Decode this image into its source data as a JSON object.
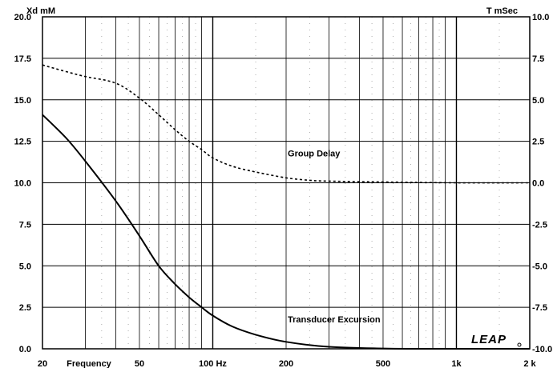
{
  "chart_data": {
    "type": "line",
    "title": "",
    "xlabel": "Frequency",
    "x_scale": "log",
    "xlim": [
      20,
      2000
    ],
    "x_ticks": [
      {
        "value": 20,
        "label": "20"
      },
      {
        "value": 50,
        "label": "50"
      },
      {
        "value": 100,
        "label": "100 Hz"
      },
      {
        "value": 200,
        "label": "200"
      },
      {
        "value": 500,
        "label": "500"
      },
      {
        "value": 1000,
        "label": "1k"
      },
      {
        "value": 2000,
        "label": "2 k"
      }
    ],
    "ylabel_left": "Xd mM",
    "ylim_left": [
      0,
      20
    ],
    "y_ticks_left": [
      "0.0",
      "2.5",
      "5.0",
      "7.5",
      "10.0",
      "12.5",
      "15.0",
      "17.5",
      "20.0"
    ],
    "ylabel_right": "T mSec",
    "ylim_right": [
      -10,
      10
    ],
    "y_ticks_right": [
      "-10.0",
      "-7.5",
      "-5.0",
      "-2.5",
      "0.0",
      "2.5",
      "5.0",
      "7.5",
      "10.0"
    ],
    "grid": true,
    "series": [
      {
        "name": "Transducer Excursion",
        "axis": "left",
        "style": "solid",
        "x": [
          20,
          25,
          30,
          40,
          50,
          60,
          70,
          80,
          90,
          100,
          120,
          150,
          200,
          300,
          500,
          700,
          1000,
          2000
        ],
        "y": [
          14.1,
          12.7,
          11.3,
          8.9,
          6.8,
          5.0,
          3.9,
          3.1,
          2.5,
          2.0,
          1.35,
          0.85,
          0.42,
          0.12,
          0.02,
          0.0,
          0.0,
          0.0
        ]
      },
      {
        "name": "Group Delay",
        "axis": "right",
        "style": "dashed",
        "x": [
          20,
          25,
          30,
          40,
          50,
          60,
          70,
          80,
          90,
          100,
          120,
          150,
          200,
          250,
          300,
          500,
          1000,
          2000
        ],
        "y": [
          7.1,
          6.7,
          6.4,
          6.0,
          5.1,
          4.1,
          3.2,
          2.5,
          2.0,
          1.5,
          1.0,
          0.65,
          0.3,
          0.15,
          0.1,
          0.05,
          0.0,
          0.0
        ]
      }
    ],
    "annotations": [
      {
        "text": "Group Delay",
        "x": 150,
        "y_right": 1.6
      },
      {
        "text": "Transducer Excursion",
        "x": 150,
        "y_left": 1.6
      }
    ],
    "brand": "LEAP"
  }
}
